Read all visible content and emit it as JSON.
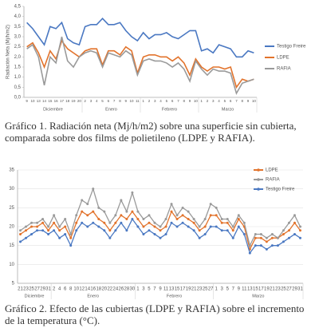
{
  "chart_data": [
    {
      "type": "line",
      "y_label": "Radiación Neta (Mj/h/m2)",
      "caption": "Gráfico 1. Radiación neta (Mj/h/m2) sobre una superficie sin cubierta, comparada sobre dos films de polietileno (LDPE y RAFIA).",
      "categories": [
        "9",
        "10",
        "13",
        "14",
        "15",
        "16",
        "17",
        "18",
        "19",
        "20",
        "2",
        "3",
        "4",
        "5",
        "6",
        "7",
        "8",
        "9",
        "10",
        "11",
        "1",
        "2",
        "3",
        "4",
        "5",
        "6",
        "7",
        "8",
        "9",
        "10",
        "1",
        "2",
        "3",
        "4",
        "5",
        "6",
        "7",
        "8",
        "9",
        "10"
      ],
      "months": [
        "Diciembre",
        "Enero",
        "Febrero",
        "Marzo"
      ],
      "series": [
        {
          "name": "Testigo Freire",
          "color": "#4a78c2",
          "values": [
            3.7,
            3.4,
            3.0,
            2.6,
            3.5,
            3.4,
            3.7,
            2.9,
            2.7,
            2.6,
            3.5,
            3.6,
            3.6,
            3.9,
            3.6,
            3.6,
            3.7,
            3.3,
            3.0,
            2.8,
            3.2,
            2.9,
            3.1,
            3.1,
            3.2,
            3.0,
            2.9,
            3.1,
            3.3,
            3.3,
            2.3,
            2.4,
            2.2,
            2.6,
            2.5,
            2.4,
            2.0,
            2.0,
            2.3,
            2.2
          ]
        },
        {
          "name": "LDPE",
          "color": "#e2732c",
          "values": [
            2.5,
            2.7,
            2.2,
            1.5,
            2.3,
            1.9,
            2.8,
            2.4,
            2.2,
            2.0,
            2.3,
            2.4,
            2.4,
            1.6,
            2.3,
            2.3,
            2.1,
            2.5,
            2.3,
            1.2,
            2.0,
            2.1,
            2.1,
            2.0,
            2.0,
            1.8,
            2.0,
            1.7,
            1.1,
            1.9,
            1.5,
            1.3,
            1.5,
            1.5,
            1.4,
            1.5,
            0.5,
            0.9,
            0.8,
            0.9
          ]
        },
        {
          "name": "RAFIA",
          "color": "#9a9a9a",
          "values": [
            2.4,
            2.6,
            2.0,
            0.6,
            2.0,
            1.7,
            3.0,
            1.8,
            1.5,
            2.0,
            2.2,
            2.3,
            2.2,
            1.5,
            2.2,
            2.1,
            2.0,
            2.3,
            2.1,
            1.1,
            1.8,
            1.9,
            1.8,
            1.8,
            1.7,
            1.5,
            1.7,
            1.4,
            0.8,
            1.8,
            1.4,
            1.1,
            1.4,
            1.3,
            1.3,
            1.2,
            0.2,
            0.7,
            0.8,
            0.9
          ]
        }
      ],
      "ylim": [
        0,
        4.5
      ],
      "yticks": [
        {
          "value": 0,
          "label": "0,0"
        },
        {
          "value": 0.5,
          "label": "0,5"
        },
        {
          "value": 1,
          "label": "1,0"
        },
        {
          "value": 1.5,
          "label": "1,5"
        },
        {
          "value": 2,
          "label": "2,0"
        },
        {
          "value": 2.5,
          "label": "2,5"
        },
        {
          "value": 3,
          "label": "3,0"
        },
        {
          "value": 3.5,
          "label": "3,5"
        },
        {
          "value": 4,
          "label": "4,0"
        },
        {
          "value": 4.5,
          "label": "4,5"
        }
      ],
      "grid": false,
      "markers": false,
      "legend": "right"
    },
    {
      "type": "line",
      "caption": "Gráfico 2. Efecto de las cubiertas (LDPE y RAFIA) sobre el incremento de la temperatura (°C).",
      "categories": [
        "21",
        "23",
        "25",
        "27",
        "29",
        "31",
        "2",
        "4",
        "6",
        "8",
        "10",
        "12",
        "14",
        "16",
        "18",
        "20",
        "22",
        "24",
        "26",
        "28",
        "30",
        "1",
        "3",
        "5",
        "7",
        "9",
        "11",
        "13",
        "15",
        "17",
        "19",
        "21",
        "23",
        "25",
        "27",
        "1",
        "3",
        "5",
        "7",
        "9",
        "11",
        "13",
        "15",
        "17",
        "19",
        "21",
        "23",
        "25",
        "27",
        "29",
        "31"
      ],
      "months": [
        "Diciembre",
        "Enero",
        "Febrero",
        "Marzo"
      ],
      "series": [
        {
          "name": "LDPE",
          "color": "#e2732c",
          "values": [
            18,
            19,
            20,
            20,
            21,
            19,
            21,
            19,
            20,
            17,
            21,
            24,
            23,
            24,
            22,
            21,
            19,
            21,
            23,
            22,
            24,
            22,
            20,
            21,
            20,
            19,
            20,
            24,
            22,
            23,
            22,
            21,
            19,
            20,
            23,
            23,
            21,
            21,
            19,
            22,
            20,
            14,
            17,
            17,
            16,
            17,
            17,
            18,
            19,
            21,
            19
          ]
        },
        {
          "name": "RAFIA",
          "color": "#9a9a9a",
          "values": [
            19,
            20,
            21,
            21,
            22,
            20,
            23,
            20,
            22,
            18,
            23,
            27,
            26,
            30,
            25,
            24,
            21,
            23,
            27,
            24,
            29,
            24,
            22,
            23,
            21,
            20,
            22,
            26,
            23,
            25,
            24,
            22,
            20,
            22,
            26,
            25,
            22,
            22,
            20,
            23,
            21,
            15,
            18,
            18,
            17,
            18,
            17,
            19,
            21,
            23,
            20
          ]
        },
        {
          "name": "Testigo Freire",
          "color": "#4a78c2",
          "values": [
            16,
            17,
            18,
            19,
            19,
            18,
            19,
            17,
            18,
            15,
            19,
            21,
            20,
            21,
            20,
            19,
            17,
            19,
            21,
            19,
            22,
            20,
            18,
            19,
            18,
            17,
            18,
            21,
            20,
            21,
            20,
            19,
            17,
            18,
            20,
            20,
            19,
            19,
            17,
            20,
            18,
            13,
            15,
            15,
            14,
            15,
            15,
            16,
            17,
            18,
            17
          ]
        }
      ],
      "ylim": [
        5,
        35
      ],
      "yticks": [
        5,
        10,
        15,
        20,
        25,
        30,
        35
      ],
      "grid": true,
      "markers": true,
      "legend": "top-right"
    }
  ]
}
